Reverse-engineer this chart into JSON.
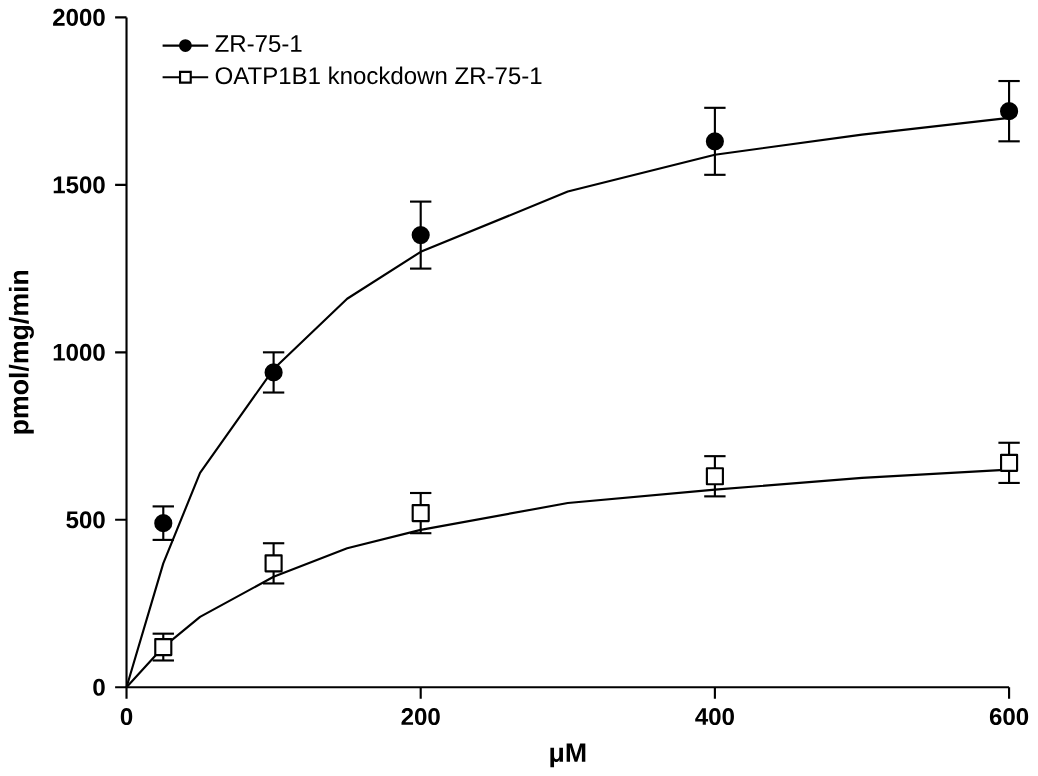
{
  "chart_data": {
    "type": "scatter",
    "xlabel": "μM",
    "ylabel": "pmol/mg/min",
    "xlim": [
      0,
      600
    ],
    "ylim": [
      0,
      2000
    ],
    "xticks": [
      0,
      200,
      400,
      600
    ],
    "yticks": [
      0,
      500,
      1000,
      1500,
      2000
    ],
    "grid": false,
    "legend": "top left",
    "series": [
      {
        "name": "ZR-75-1",
        "marker": "circle",
        "color": "#000000",
        "x": [
          25,
          100,
          200,
          400,
          600
        ],
        "values": [
          490,
          940,
          1350,
          1630,
          1720
        ],
        "errors": [
          50,
          60,
          100,
          100,
          90
        ]
      },
      {
        "name": "OATP1B1 knockdown ZR-75-1",
        "marker": "square",
        "color": "#000000",
        "x": [
          25,
          100,
          200,
          400,
          600
        ],
        "values": [
          120,
          370,
          520,
          630,
          670
        ],
        "errors": [
          40,
          60,
          60,
          60,
          60
        ]
      },
      {
        "type": "line",
        "marker": "none",
        "color": "#000000",
        "x": [
          0,
          25,
          50,
          100,
          150,
          200,
          300,
          400,
          500,
          600
        ],
        "values": [
          0,
          370,
          640,
          950,
          1160,
          1300,
          1480,
          1590,
          1650,
          1700
        ]
      },
      {
        "type": "line",
        "marker": "none",
        "color": "#000000",
        "x": [
          0,
          25,
          50,
          100,
          150,
          200,
          300,
          400,
          500,
          600
        ],
        "values": [
          0,
          120,
          210,
          330,
          415,
          470,
          550,
          590,
          625,
          650
        ]
      }
    ]
  }
}
